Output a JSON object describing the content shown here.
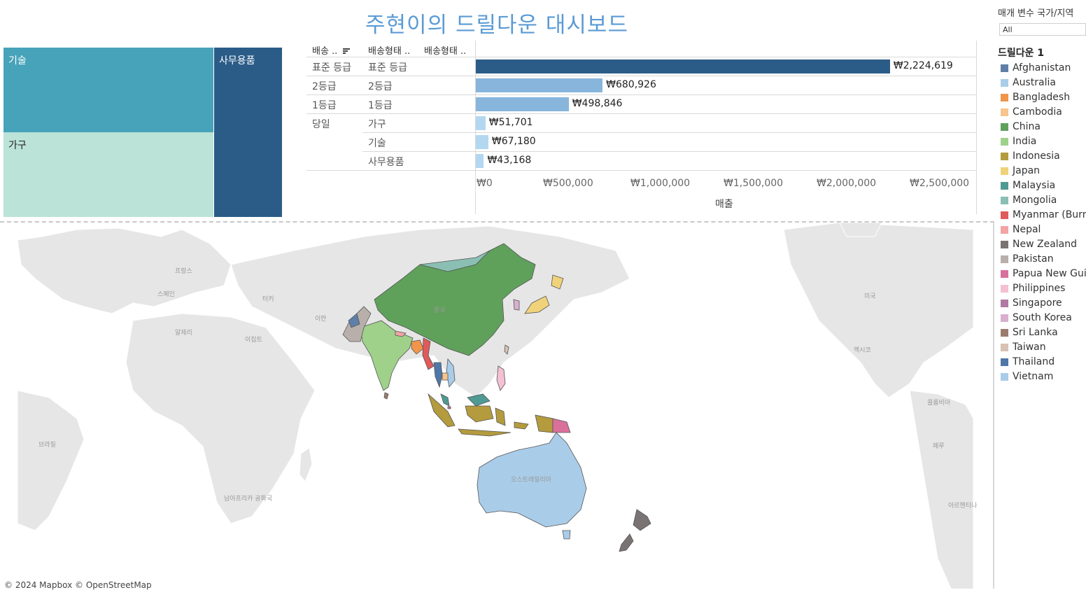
{
  "title": "주현이의 드릴다운 대시보드",
  "treemap": {
    "tech": "기술",
    "furniture": "가구",
    "office": "사무용품"
  },
  "table": {
    "headers": [
      "배송 ..",
      "배송형태 ..",
      "배송형태 .."
    ],
    "rows": [
      {
        "group": "표준 등급",
        "sub": "표준 등급",
        "value": 2224619,
        "label": "₩2,224,619",
        "color": "#2b5c88"
      },
      {
        "group": "2등급",
        "sub": "2등급",
        "value": 680926,
        "label": "₩680,926",
        "color": "#88b5dc"
      },
      {
        "group": "1등급",
        "sub": "1등급",
        "value": 498846,
        "label": "₩498,846",
        "color": "#88b5dc"
      },
      {
        "group": "당일",
        "sub": "가구",
        "value": 51701,
        "label": "₩51,701",
        "color": "#b3d7f0"
      },
      {
        "group": "",
        "sub": "기술",
        "value": 67180,
        "label": "₩67,180",
        "color": "#b3d7f0"
      },
      {
        "group": "",
        "sub": "사무용품",
        "value": 43168,
        "label": "₩43,168",
        "color": "#b3d7f0"
      }
    ],
    "ticks": [
      "₩0",
      "₩500,000",
      "₩1,000,000",
      "₩1,500,000",
      "₩2,000,000",
      "₩2,500,000"
    ],
    "axis_title": "매출"
  },
  "chart_data": {
    "type": "bar",
    "categories": [
      "표준 등급",
      "2등급",
      "1등급",
      "당일 / 가구",
      "당일 / 기술",
      "당일 / 사무용품"
    ],
    "values": [
      2224619,
      680926,
      498846,
      51701,
      67180,
      43168
    ],
    "xlabel": "매출",
    "xlim": [
      0,
      2600000
    ]
  },
  "map": {
    "attribution": "© 2024 Mapbox © OpenStreetMap",
    "place_labels": [
      "프랑스",
      "스페인",
      "터키",
      "이란",
      "알제리",
      "이집트",
      "중국",
      "미국",
      "멕시코",
      "콜롬비아",
      "페루",
      "아르헨티나",
      "브라질",
      "남아프리카 공화국",
      "오스트레일리아"
    ]
  },
  "parameter": {
    "label": "매개 변수 국가/지역",
    "value": "All"
  },
  "legend": {
    "title": "드릴다운 1",
    "items": [
      {
        "name": "Afghanistan",
        "color": "#5f7fa8"
      },
      {
        "name": "Australia",
        "color": "#a9cce9"
      },
      {
        "name": "Bangladesh",
        "color": "#f0954a"
      },
      {
        "name": "Cambodia",
        "color": "#f7c58d"
      },
      {
        "name": "China",
        "color": "#5fa15b"
      },
      {
        "name": "India",
        "color": "#9fd18a"
      },
      {
        "name": "Indonesia",
        "color": "#b39b3e"
      },
      {
        "name": "Japan",
        "color": "#f0d27a"
      },
      {
        "name": "Malaysia",
        "color": "#4f9a93"
      },
      {
        "name": "Mongolia",
        "color": "#8bbfb4"
      },
      {
        "name": "Myanmar (Burma)",
        "color": "#e05a5a"
      },
      {
        "name": "Nepal",
        "color": "#f3a3a3"
      },
      {
        "name": "New Zealand",
        "color": "#7a7373"
      },
      {
        "name": "Pakistan",
        "color": "#b8afab"
      },
      {
        "name": "Papua New Guinea",
        "color": "#d9709b"
      },
      {
        "name": "Philippines",
        "color": "#f4c0d3"
      },
      {
        "name": "Singapore",
        "color": "#b07aa3"
      },
      {
        "name": "South Korea",
        "color": "#d7b0d0"
      },
      {
        "name": "Sri Lanka",
        "color": "#9c7b6f"
      },
      {
        "name": "Taiwan",
        "color": "#d8c1b5"
      },
      {
        "name": "Thailand",
        "color": "#4f77a8"
      },
      {
        "name": "Vietnam",
        "color": "#a9cce9"
      }
    ]
  }
}
